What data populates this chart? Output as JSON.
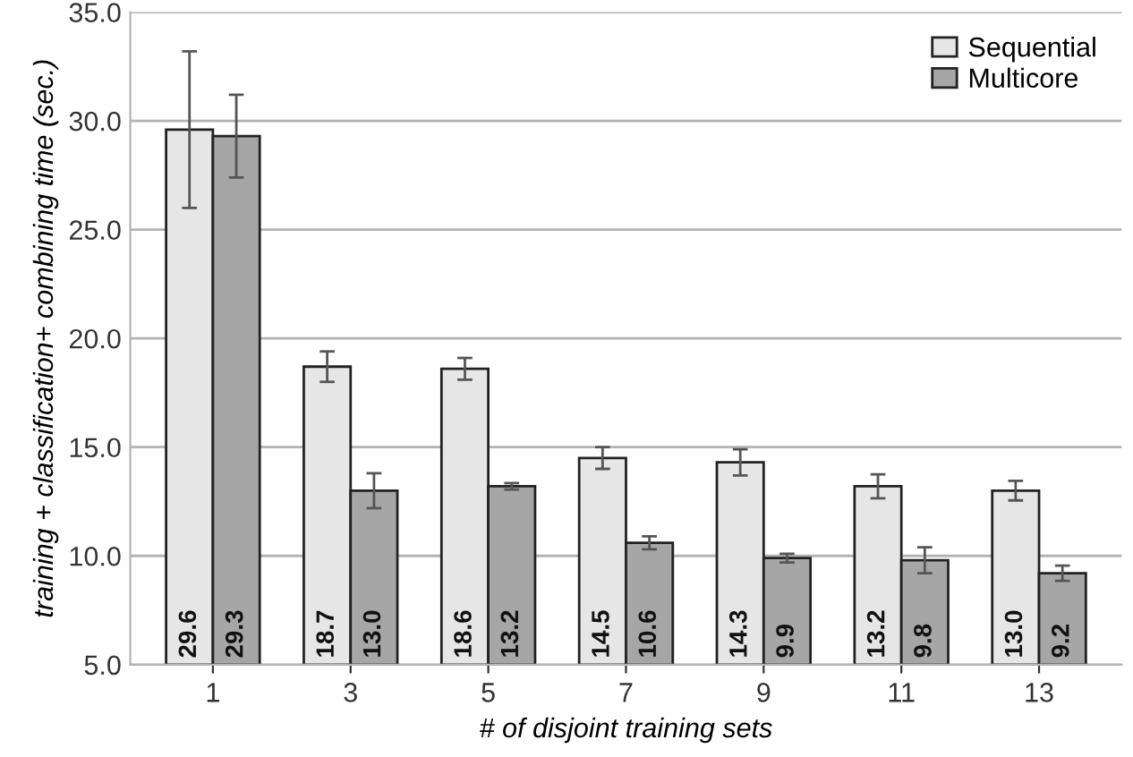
{
  "chart_data": {
    "type": "bar",
    "xlabel": "# of disjoint training sets",
    "ylabel": "training + classification+ combining time (sec.)",
    "categories": [
      "1",
      "3",
      "5",
      "7",
      "9",
      "11",
      "13"
    ],
    "series": [
      {
        "name": "Sequential",
        "color": "#e6e6e6",
        "values": [
          29.6,
          18.7,
          18.6,
          14.5,
          14.3,
          13.2,
          13.0
        ],
        "errors": [
          3.6,
          0.7,
          0.5,
          0.5,
          0.6,
          0.55,
          0.45
        ],
        "value_labels": [
          "29.6",
          "18.7",
          "18.6",
          "14.5",
          "14.3",
          "13.2",
          "13.0"
        ]
      },
      {
        "name": "Multicore",
        "color": "#a6a6a6",
        "values": [
          29.3,
          13.0,
          13.2,
          10.6,
          9.9,
          9.8,
          9.2
        ],
        "errors": [
          1.9,
          0.8,
          0.15,
          0.3,
          0.2,
          0.6,
          0.35
        ],
        "value_labels": [
          "29.3",
          "13.0",
          "13.2",
          "10.6",
          "9.9",
          "9.8",
          "9.2"
        ]
      }
    ],
    "ylim": [
      5,
      35
    ],
    "yticks": [
      {
        "value": 5,
        "label": "5.0"
      },
      {
        "value": 10,
        "label": "10.0"
      },
      {
        "value": 15,
        "label": "15.0"
      },
      {
        "value": 20,
        "label": "20.0"
      },
      {
        "value": 25,
        "label": "25.0"
      },
      {
        "value": 30,
        "label": "30.0"
      },
      {
        "value": 35,
        "label": "35.0"
      }
    ],
    "grid": "y",
    "legend": "top right"
  }
}
